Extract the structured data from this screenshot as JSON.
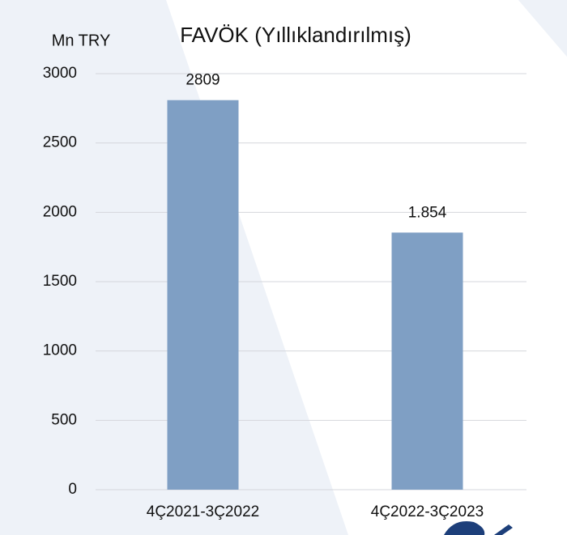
{
  "chart_data": {
    "type": "bar",
    "title": "FAVÖK (Yıllıklandırılmış)",
    "y_label": "Mn TRY",
    "categories": [
      "4Ç2021-3Ç2022",
      "4Ç2022-3Ç2023"
    ],
    "values": [
      2809,
      1854
    ],
    "value_labels": [
      "2809",
      "1.854"
    ],
    "color": "#7f9fc4",
    "ylim": [
      0,
      3000
    ],
    "yticks": [
      0,
      500,
      1000,
      1500,
      2000,
      2500,
      3000
    ],
    "grid": true
  }
}
